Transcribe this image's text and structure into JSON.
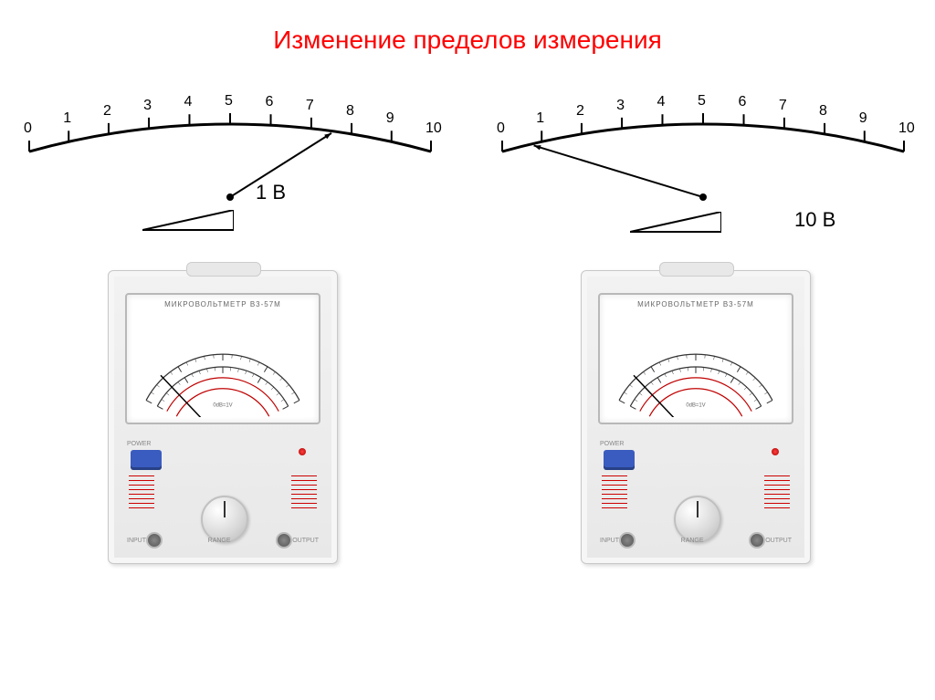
{
  "title": {
    "text": "Изменение пределов измерения",
    "color": "#ff0000"
  },
  "scale": {
    "ticks": [
      "0",
      "1",
      "2",
      "3",
      "4",
      "5",
      "6",
      "7",
      "8",
      "9",
      "10"
    ],
    "stroke": "#000000",
    "stroke_width": 3,
    "label_fontsize": 16
  },
  "left": {
    "needle_target_tick": 7.5,
    "range_label": "1 В",
    "device_label": "МИКРОВОЛЬТМЕТР В3-57М"
  },
  "right": {
    "needle_target_tick": 0.8,
    "range_label": "10 В",
    "device_label": "МИКРОВОЛЬТМЕТР В3-57М"
  },
  "device": {
    "power_label": "POWER",
    "input_label": "INPUT",
    "output_label": "OUTPUT",
    "range_label": "RANGE",
    "knob_count_side": 8
  },
  "colors": {
    "needle": "#000000",
    "device_bg": "#efefef",
    "dial_red": "#c00000",
    "led": "#ff3030"
  }
}
